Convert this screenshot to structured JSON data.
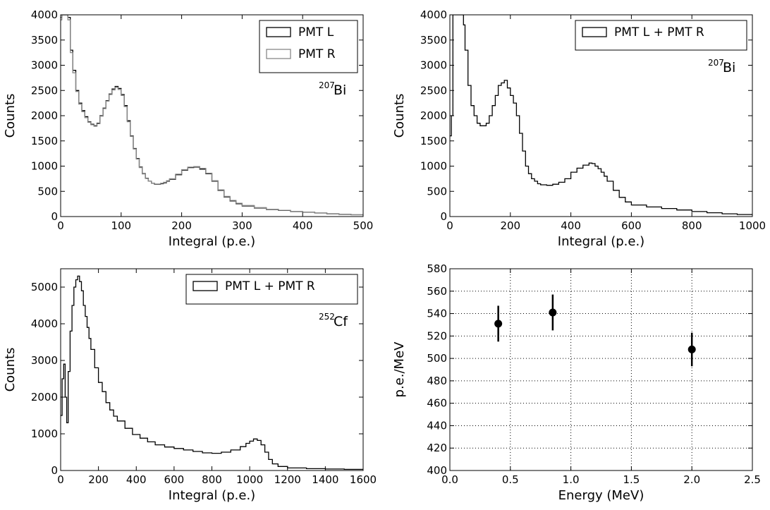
{
  "chart_data": [
    {
      "type": "histogram",
      "xlabel": "Integral (p.e.)",
      "ylabel": "Counts",
      "xlim": [
        0,
        500
      ],
      "ylim": [
        0,
        4000
      ],
      "xticks": [
        0,
        100,
        200,
        300,
        400,
        500
      ],
      "yticks": [
        0,
        500,
        1000,
        1500,
        2000,
        2500,
        3000,
        3500,
        4000
      ],
      "grid": false,
      "legend_position": "top-right",
      "annotation": {
        "sup": "207",
        "base": "Bi"
      },
      "series": [
        {
          "name": "PMT L",
          "color": "#000000",
          "x": [
            0,
            2,
            4,
            6,
            8,
            12,
            16,
            20,
            25,
            30,
            35,
            40,
            45,
            50,
            55,
            60,
            65,
            70,
            75,
            80,
            85,
            90,
            95,
            100,
            105,
            110,
            115,
            120,
            125,
            130,
            135,
            140,
            145,
            150,
            155,
            160,
            165,
            170,
            175,
            180,
            190,
            200,
            210,
            220,
            230,
            240,
            250,
            260,
            270,
            280,
            290,
            300,
            320,
            340,
            360,
            380,
            400,
            420,
            440,
            460,
            480,
            500
          ],
          "y": [
            3950,
            4000,
            4000,
            4000,
            4000,
            3950,
            3300,
            2900,
            2500,
            2250,
            2100,
            1980,
            1880,
            1830,
            1800,
            1850,
            2000,
            2150,
            2300,
            2430,
            2530,
            2580,
            2540,
            2420,
            2200,
            1900,
            1600,
            1350,
            1150,
            980,
            850,
            760,
            700,
            660,
            640,
            640,
            650,
            670,
            700,
            740,
            830,
            920,
            970,
            980,
            940,
            850,
            700,
            520,
            390,
            310,
            255,
            210,
            170,
            140,
            120,
            100,
            85,
            70,
            55,
            45,
            35,
            25
          ]
        },
        {
          "name": "PMT R",
          "color": "#888888",
          "x": [
            0,
            2,
            4,
            6,
            8,
            12,
            16,
            20,
            25,
            30,
            35,
            40,
            45,
            50,
            55,
            60,
            65,
            70,
            75,
            80,
            85,
            90,
            95,
            100,
            105,
            110,
            115,
            120,
            125,
            130,
            135,
            140,
            145,
            150,
            155,
            160,
            165,
            170,
            175,
            180,
            190,
            200,
            210,
            220,
            230,
            240,
            250,
            260,
            270,
            280,
            290,
            300,
            320,
            340,
            360,
            380,
            400,
            420,
            440,
            460,
            480,
            500
          ],
          "y": [
            3900,
            4000,
            4000,
            4000,
            4000,
            3900,
            3250,
            2850,
            2480,
            2230,
            2080,
            1960,
            1870,
            1820,
            1790,
            1840,
            1990,
            2140,
            2290,
            2420,
            2510,
            2560,
            2520,
            2400,
            2180,
            1880,
            1590,
            1340,
            1140,
            970,
            845,
            755,
            700,
            660,
            645,
            645,
            660,
            680,
            710,
            750,
            840,
            930,
            980,
            990,
            955,
            860,
            710,
            530,
            400,
            320,
            265,
            220,
            178,
            146,
            124,
            104,
            88,
            72,
            58,
            47,
            37,
            27
          ]
        }
      ]
    },
    {
      "type": "histogram",
      "xlabel": "Integral (p.e.)",
      "ylabel": "Counts",
      "xlim": [
        0,
        1000
      ],
      "ylim": [
        0,
        4000
      ],
      "xticks": [
        0,
        200,
        400,
        600,
        800,
        1000
      ],
      "yticks": [
        0,
        500,
        1000,
        1500,
        2000,
        2500,
        3000,
        3500,
        4000
      ],
      "grid": false,
      "legend_position": "top-right",
      "annotation": {
        "sup": "207",
        "base": "Bi"
      },
      "series": [
        {
          "name": "PMT L + PMT R",
          "color": "#000000",
          "x": [
            0,
            5,
            10,
            15,
            20,
            25,
            30,
            35,
            40,
            45,
            50,
            60,
            70,
            80,
            90,
            100,
            110,
            120,
            130,
            140,
            150,
            160,
            170,
            180,
            190,
            200,
            210,
            220,
            230,
            240,
            250,
            260,
            270,
            280,
            290,
            300,
            320,
            340,
            360,
            380,
            400,
            420,
            440,
            460,
            470,
            480,
            490,
            500,
            510,
            520,
            540,
            560,
            580,
            600,
            650,
            700,
            750,
            800,
            850,
            900,
            950,
            1000
          ],
          "y": [
            1600,
            2000,
            4000,
            4000,
            4000,
            4000,
            4000,
            4000,
            4000,
            3800,
            3300,
            2600,
            2200,
            2000,
            1850,
            1800,
            1800,
            1850,
            2000,
            2200,
            2400,
            2600,
            2650,
            2700,
            2550,
            2400,
            2250,
            2000,
            1650,
            1300,
            1000,
            850,
            750,
            700,
            650,
            630,
            620,
            640,
            680,
            750,
            880,
            960,
            1020,
            1060,
            1050,
            1000,
            950,
            880,
            800,
            700,
            520,
            380,
            290,
            230,
            190,
            160,
            130,
            100,
            75,
            55,
            40,
            30
          ]
        }
      ]
    },
    {
      "type": "histogram",
      "xlabel": "Integral (p.e.)",
      "ylabel": "Counts",
      "xlim": [
        0,
        1600
      ],
      "ylim": [
        0,
        5500
      ],
      "xticks": [
        0,
        200,
        400,
        600,
        800,
        1000,
        1200,
        1400,
        1600
      ],
      "yticks": [
        0,
        1000,
        2000,
        3000,
        4000,
        5000
      ],
      "grid": false,
      "legend_position": "top-right",
      "annotation": {
        "sup": "252",
        "base": "Cf"
      },
      "series": [
        {
          "name": "PMT L + PMT R",
          "color": "#000000",
          "x": [
            0,
            8,
            16,
            24,
            32,
            40,
            50,
            60,
            70,
            80,
            90,
            100,
            110,
            120,
            130,
            140,
            150,
            160,
            180,
            200,
            220,
            240,
            260,
            280,
            300,
            340,
            380,
            420,
            460,
            500,
            550,
            600,
            650,
            700,
            750,
            800,
            850,
            900,
            950,
            980,
            1000,
            1020,
            1040,
            1060,
            1080,
            1100,
            1120,
            1150,
            1200,
            1300,
            1400,
            1500,
            1600
          ],
          "y": [
            1500,
            2500,
            2900,
            2000,
            1300,
            2700,
            3800,
            4500,
            5000,
            5200,
            5300,
            5150,
            4900,
            4500,
            4200,
            3900,
            3600,
            3300,
            2800,
            2400,
            2150,
            1850,
            1650,
            1480,
            1350,
            1150,
            980,
            880,
            780,
            700,
            640,
            600,
            560,
            520,
            480,
            470,
            500,
            560,
            650,
            740,
            800,
            860,
            820,
            700,
            500,
            300,
            180,
            110,
            70,
            50,
            40,
            30,
            20
          ]
        }
      ]
    },
    {
      "type": "scatter",
      "xlabel": "Energy (MeV)",
      "ylabel": "p.e./MeV",
      "xlim": [
        0.0,
        2.5
      ],
      "ylim": [
        400,
        580
      ],
      "xticks": [
        "0.0",
        "0.5",
        "1.0",
        "1.5",
        "2.0",
        "2.5"
      ],
      "yticks": [
        400,
        420,
        440,
        460,
        480,
        500,
        520,
        540,
        560,
        580
      ],
      "grid": true,
      "series": [
        {
          "x": [
            0.4,
            0.85,
            2.0
          ],
          "y": [
            531,
            541,
            508
          ],
          "yerr": [
            16,
            16,
            15
          ],
          "color": "#000000"
        }
      ]
    }
  ]
}
